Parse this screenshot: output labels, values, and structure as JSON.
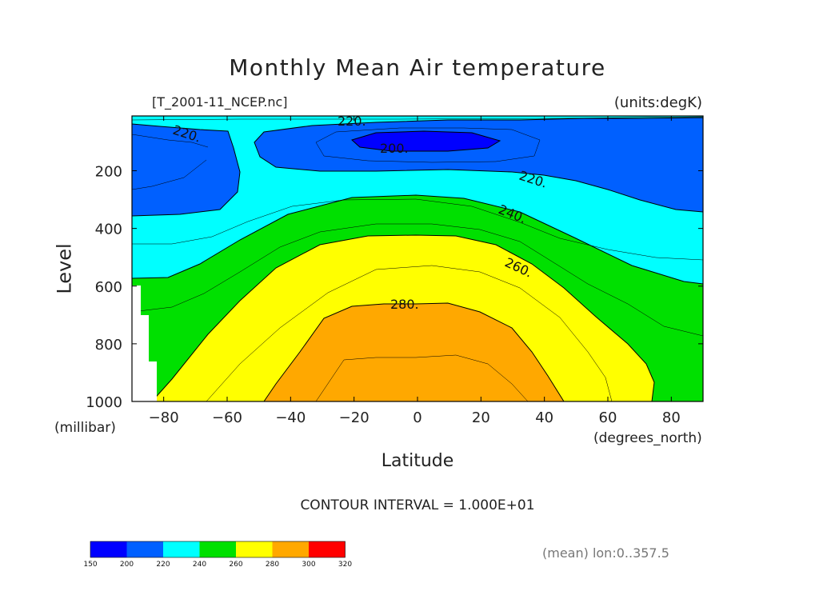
{
  "chart_data": {
    "type": "heatmap",
    "title": "Monthly Mean Air temperature",
    "file_label": "[T_2001-11_NCEP.nc]",
    "units_label": "(units:degK)",
    "xlabel": "Latitude",
    "xunit": "(degrees_north)",
    "ylabel": "Level",
    "yunit": "(millibar)",
    "xlim": [
      -90,
      90
    ],
    "ylim": [
      1000,
      10
    ],
    "x_ticks": [
      -80,
      -60,
      -40,
      -20,
      0,
      20,
      40,
      60,
      80
    ],
    "y_ticks": [
      1000,
      800,
      600,
      400,
      200
    ],
    "contour_interval_text": "CONTOUR INTERVAL = 1.000E+01",
    "mean_note": "(mean) lon:0..357.5",
    "contour_labels": [
      "220.",
      "220.",
      "200.",
      "220.",
      "240.",
      "260.",
      "280."
    ],
    "colorbar": {
      "levels": [
        150,
        200,
        220,
        240,
        260,
        280,
        300,
        320
      ],
      "colors": [
        "#0000ff",
        "#0060ff",
        "#00ffff",
        "#00e000",
        "#ffff00",
        "#ffa800",
        "#ff0000"
      ]
    },
    "grid": false
  }
}
